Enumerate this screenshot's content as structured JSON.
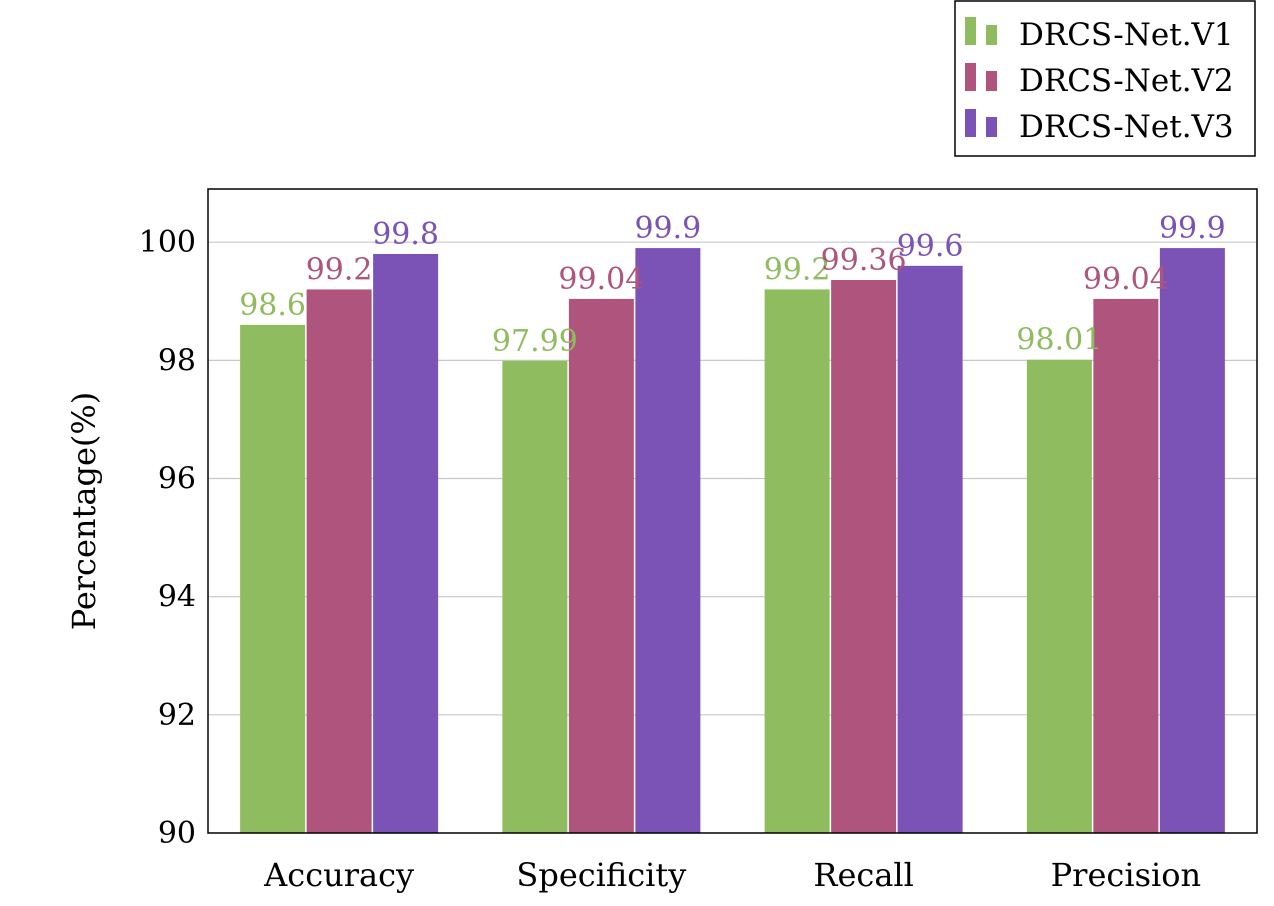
{
  "chart_data": {
    "type": "bar",
    "categories": [
      "Accuracy",
      "Specificity",
      "Recall",
      "Precision"
    ],
    "series": [
      {
        "name": "DRCS-Net.V1",
        "color": "#8fbc5e",
        "values": [
          98.6,
          97.99,
          99.2,
          98.01
        ],
        "labels": [
          "98.6",
          "97.99",
          "99.2",
          "98.01"
        ]
      },
      {
        "name": "DRCS-Net.V2",
        "color": "#ae547d",
        "values": [
          99.2,
          99.04,
          99.36,
          99.04
        ],
        "labels": [
          "99.2",
          "99.04",
          "99.36",
          "99.04"
        ]
      },
      {
        "name": "DRCS-Net.V3",
        "color": "#7b52b6",
        "values": [
          99.8,
          99.9,
          99.6,
          99.9
        ],
        "labels": [
          "99.8",
          "99.9",
          "99.6",
          "99.9"
        ]
      }
    ],
    "ylabel": "Percentage(%)",
    "xlabel": "",
    "ylim": [
      90,
      100.9
    ],
    "yticks": [
      "90",
      "92",
      "94",
      "96",
      "98",
      "100"
    ],
    "grid": true,
    "legend_position": "top-right, outside plot"
  }
}
